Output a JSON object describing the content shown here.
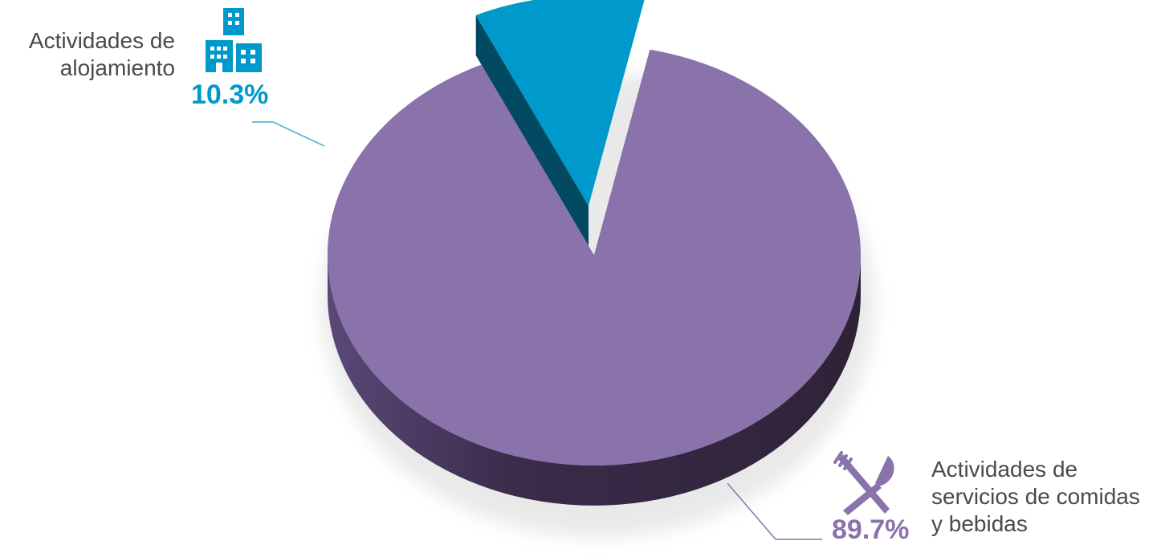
{
  "colors": {
    "alojamiento_top": "#0099CC",
    "alojamiento_side": "#024A62",
    "comidas_top": "#8A72AA",
    "comidas_side": "#3A2C4A",
    "label_text": "#4A4A4A",
    "leader_alojamiento": "#3AA8D2",
    "leader_comidas": "#8A72AA"
  },
  "icons": {
    "alojamiento": "buildings-icon",
    "comidas": "fork-knife-icon"
  },
  "chart_data": {
    "type": "pie",
    "style": "3d-exploded",
    "series": [
      {
        "name": "Actividades de alojamiento",
        "name_lines": [
          "Actividades de",
          "alojamiento"
        ],
        "value": 10.3,
        "label": "10.3%",
        "exploded": true
      },
      {
        "name": "Actividades de servicios de comidas y bebidas",
        "name_lines": [
          "Actividades de",
          "servicios de comidas",
          "y bebidas"
        ],
        "value": 89.7,
        "label": "89.7%",
        "exploded": false
      }
    ]
  }
}
